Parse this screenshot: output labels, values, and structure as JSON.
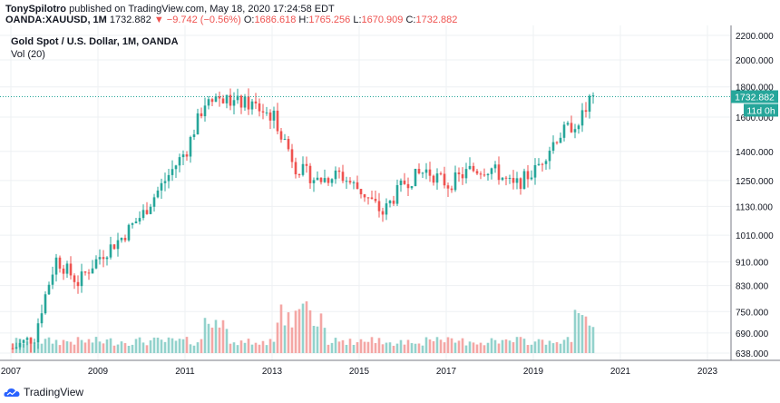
{
  "header": {
    "author": "TonySpilotro",
    "published_text": "published on TradingView.com, May 18, 2020 17:24:58 EDT",
    "symbol": "OANDA:XAUUSD, 1M",
    "last": "1732.882",
    "change": "▼ −9.742 (−0.56%)",
    "o_label": "O:",
    "o": "1686.618",
    "h_label": "H:",
    "h": "1765.256",
    "l_label": "L:",
    "l": "1670.909",
    "c_label": "C:",
    "c": "1732.882"
  },
  "legend": {
    "title": "Gold Spot / U.S. Dollar, 1M, OANDA",
    "volume": "Vol (20)"
  },
  "price_tag": "1732.882",
  "countdown_tag": "11d 0h",
  "footer": {
    "brand": "TradingView"
  },
  "colors": {
    "up": "#26a69a",
    "down": "#ef5350",
    "up_vol": "#93d2cc",
    "down_vol": "#f4a7a5",
    "price_line": "#26a69a",
    "grid": "#eef0f3"
  },
  "chart_data": {
    "type": "candlestick",
    "title": "Gold Spot / U.S. Dollar, 1M, OANDA",
    "y_scale": "log",
    "ylim": [
      620,
      2260
    ],
    "y_ticks": [
      "2200.000",
      "2000.000",
      "1800.000",
      "1600.000",
      "1400.000",
      "1250.000",
      "1130.000",
      "1010.000",
      "910.000",
      "830.000",
      "750.000",
      "690.000",
      "638.000"
    ],
    "x_ticks": [
      "2007",
      "2009",
      "2011",
      "2013",
      "2015",
      "2017",
      "2019",
      "2021",
      "2023"
    ],
    "x_range": [
      "2007-01",
      "2023-12"
    ],
    "last_price": 1732.882,
    "series": [
      {
        "name": "Price",
        "close_by_half_year": [
          [
            "2007-01",
            650
          ],
          [
            "2007-07",
            680
          ],
          [
            "2008-01",
            920
          ],
          [
            "2008-07",
            840
          ],
          [
            "2009-01",
            930
          ],
          [
            "2009-07",
            1000
          ],
          [
            "2010-01",
            1100
          ],
          [
            "2010-07",
            1250
          ],
          [
            "2011-01",
            1410
          ],
          [
            "2011-07",
            1750
          ],
          [
            "2012-01",
            1700
          ],
          [
            "2012-07",
            1680
          ],
          [
            "2013-01",
            1600
          ],
          [
            "2013-07",
            1320
          ],
          [
            "2014-01",
            1250
          ],
          [
            "2014-07",
            1280
          ],
          [
            "2015-01",
            1200
          ],
          [
            "2015-07",
            1100
          ],
          [
            "2016-01",
            1240
          ],
          [
            "2016-07",
            1300
          ],
          [
            "2017-01",
            1230
          ],
          [
            "2017-07",
            1300
          ],
          [
            "2018-01",
            1310
          ],
          [
            "2018-07",
            1220
          ],
          [
            "2019-01",
            1300
          ],
          [
            "2019-07",
            1480
          ],
          [
            "2020-01",
            1580
          ],
          [
            "2020-05",
            1733
          ]
        ]
      }
    ]
  }
}
